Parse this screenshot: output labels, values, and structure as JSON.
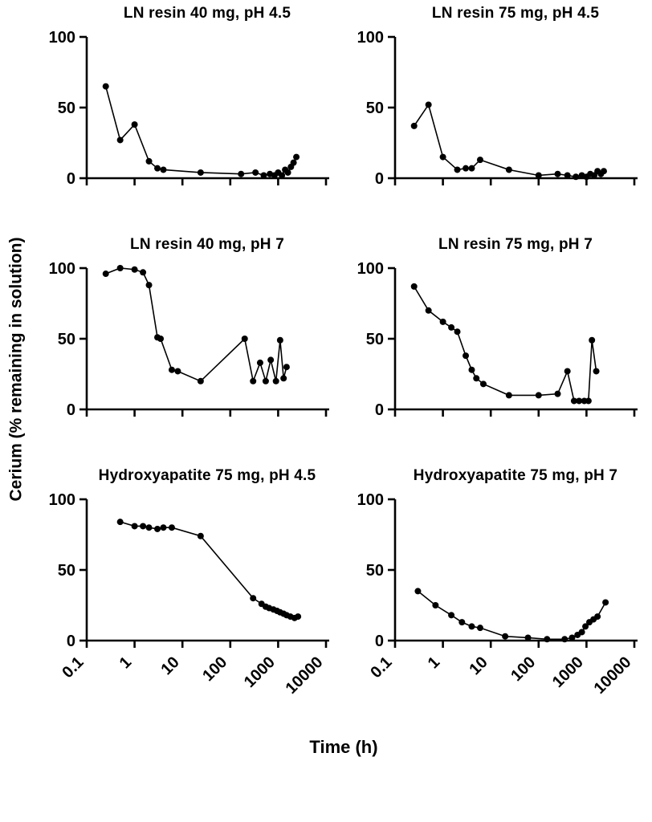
{
  "figure": {
    "ylabel": "Cerium (% remaining in solution)",
    "xlabel": "Time (h)"
  },
  "axis": {
    "scale_x": "log",
    "xlim_log": [
      -1,
      4
    ],
    "ylim": [
      0,
      100
    ],
    "x_ticks": [
      0.1,
      1,
      10,
      100,
      1000,
      10000
    ],
    "x_tick_labels": [
      "0.1",
      "1",
      "10",
      "100",
      "1000",
      "10000"
    ],
    "y_ticks": [
      0,
      50,
      100
    ],
    "y_tick_labels": [
      "0",
      "50",
      "100"
    ],
    "axis_color": "#000000",
    "marker_color": "#000000",
    "line_color": "#000000"
  },
  "chart_data": [
    {
      "type": "line",
      "title": "LN resin 40 mg, pH 4.5",
      "show_x_tick_labels": false,
      "x": [
        0.25,
        0.5,
        1,
        2,
        3,
        4,
        24,
        168,
        336,
        500,
        672,
        840,
        1000,
        1200,
        1400,
        1600,
        1850,
        2100,
        2400
      ],
      "y": [
        65,
        27,
        38,
        12,
        7,
        6,
        4,
        3,
        4,
        2,
        3,
        2,
        4,
        2,
        6,
        4,
        8,
        11,
        15
      ]
    },
    {
      "type": "line",
      "title": "LN resin 75 mg, pH 4.5",
      "show_x_tick_labels": false,
      "x": [
        0.25,
        0.5,
        1,
        2,
        3,
        4,
        6,
        24,
        100,
        250,
        400,
        600,
        800,
        1000,
        1200,
        1450,
        1700,
        2000,
        2300
      ],
      "y": [
        37,
        52,
        15,
        6,
        7,
        7,
        13,
        6,
        2,
        3,
        2,
        1,
        2,
        1,
        3,
        2,
        5,
        3,
        5
      ]
    },
    {
      "type": "line",
      "title": "LN resin 40 mg, pH 7",
      "show_x_tick_labels": false,
      "x": [
        0.25,
        0.5,
        1,
        1.5,
        2,
        3,
        3.5,
        6,
        8,
        24,
        200,
        300,
        420,
        550,
        700,
        900,
        1100,
        1300,
        1500
      ],
      "y": [
        96,
        100,
        99,
        97,
        88,
        51,
        50,
        28,
        27,
        20,
        50,
        20,
        33,
        20,
        35,
        20,
        49,
        22,
        30
      ]
    },
    {
      "type": "line",
      "title": "LN resin 75 mg, pH 7",
      "show_x_tick_labels": false,
      "x": [
        0.25,
        0.5,
        1,
        1.5,
        2,
        3,
        4,
        5,
        7,
        24,
        100,
        250,
        400,
        550,
        700,
        900,
        1100,
        1300,
        1600
      ],
      "y": [
        87,
        70,
        62,
        58,
        55,
        38,
        28,
        22,
        18,
        10,
        10,
        11,
        27,
        6,
        6,
        6,
        6,
        49,
        27
      ]
    },
    {
      "type": "line",
      "title": "Hydroxyapatite 75 mg, pH 4.5",
      "show_x_tick_labels": true,
      "x": [
        0.5,
        1,
        1.5,
        2,
        3,
        4,
        6,
        24,
        300,
        450,
        550,
        650,
        800,
        950,
        1100,
        1300,
        1500,
        1800,
        2200,
        2600
      ],
      "y": [
        84,
        81,
        81,
        80,
        79,
        80,
        80,
        74,
        30,
        26,
        24,
        23,
        22,
        21,
        20,
        19,
        18,
        17,
        16,
        17
      ]
    },
    {
      "type": "line",
      "title": "Hydroxyapatite 75 mg, pH 7",
      "show_x_tick_labels": true,
      "x": [
        0.3,
        0.7,
        1.5,
        2.5,
        4,
        6,
        20,
        60,
        150,
        350,
        500,
        650,
        800,
        950,
        1150,
        1400,
        1700,
        2500
      ],
      "y": [
        35,
        25,
        18,
        13,
        10,
        9,
        3,
        2,
        1,
        1,
        2,
        4,
        6,
        10,
        13,
        15,
        17,
        27
      ]
    }
  ]
}
